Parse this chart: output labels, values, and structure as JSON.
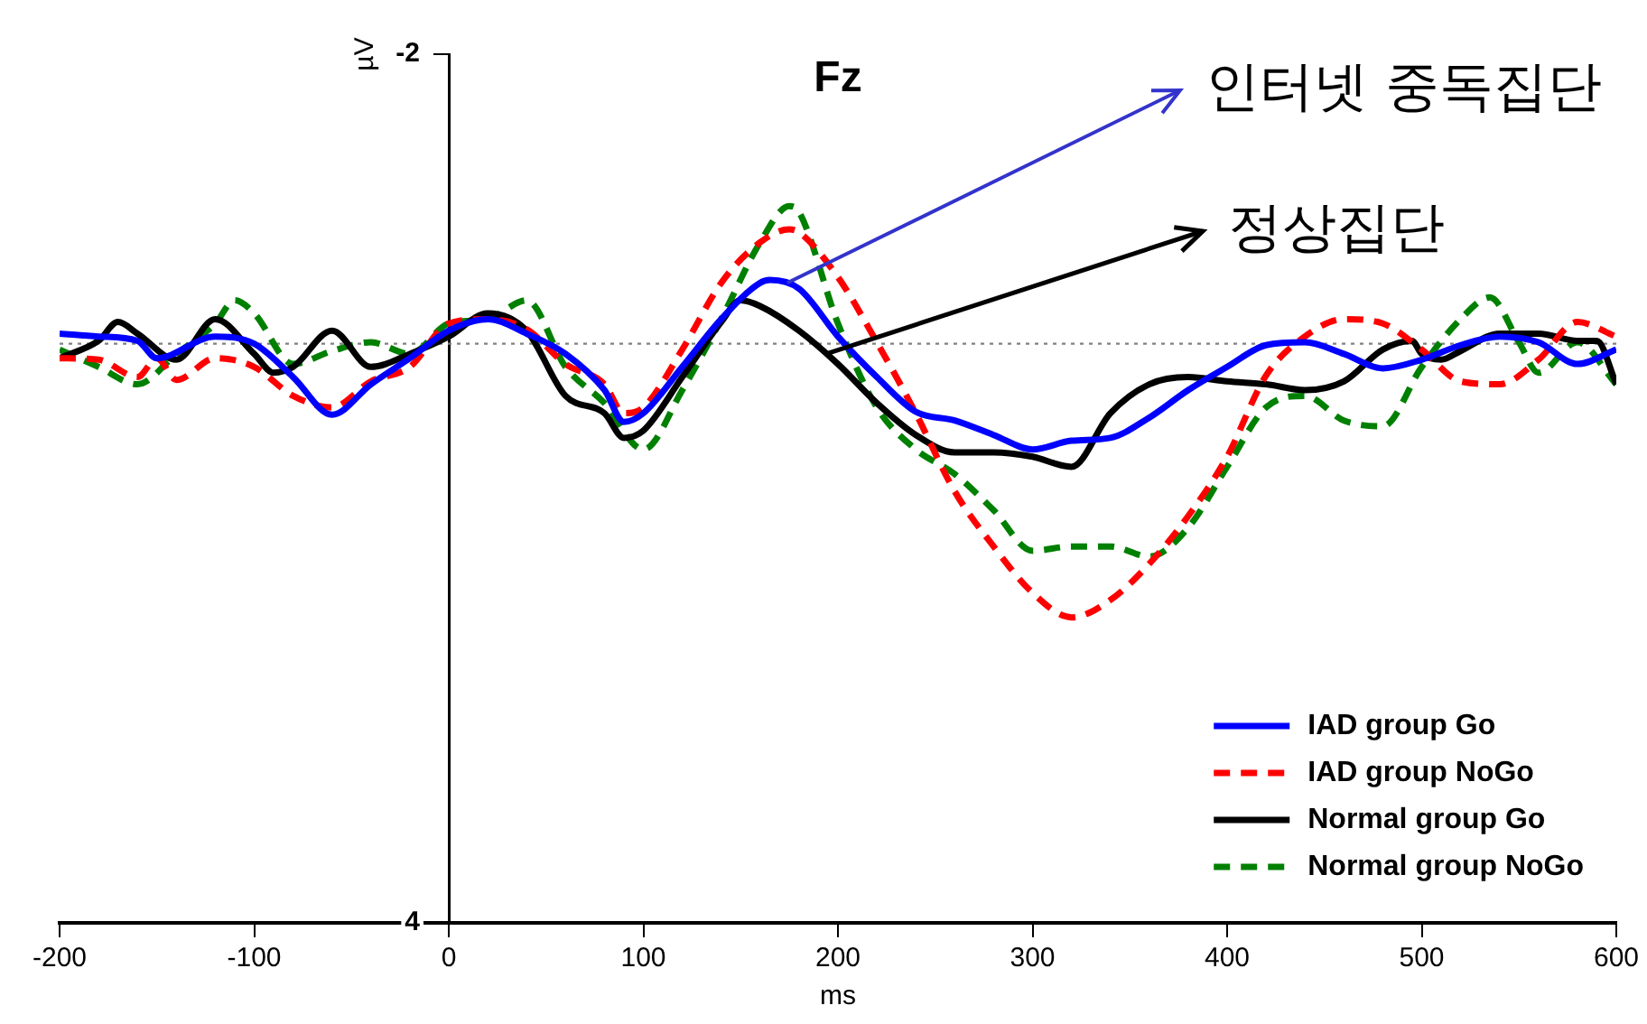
{
  "chart_data": {
    "type": "line",
    "title": "Fz",
    "xlabel": "ms",
    "ylabel": "µV",
    "xlim": [
      -200,
      600
    ],
    "xticks": [
      -200,
      -100,
      0,
      100,
      200,
      300,
      400,
      500,
      600
    ],
    "ylim": [
      4,
      -2
    ],
    "yticks": [
      -2,
      4
    ],
    "grid": false,
    "legend": "bottom right",
    "marker": "none",
    "ref_lines": [
      {
        "axis": "y",
        "value": 0,
        "color": "#808080",
        "line_style": "dotted"
      }
    ],
    "annotations": [
      {
        "text": "인터넷 중독집단",
        "x": 174,
        "y": -0.42
      },
      {
        "text": "정상집단",
        "x": 194,
        "y": 0.07
      }
    ],
    "series": [
      {
        "name": "IAD group Go",
        "color": "#0000ff",
        "line_style": "solid",
        "x": [
          -200,
          -180,
          -160,
          -150,
          -120,
          -100,
          -80,
          -60,
          -40,
          -20,
          0,
          20,
          40,
          60,
          80,
          90,
          100,
          120,
          140,
          160,
          165,
          180,
          200,
          220,
          240,
          260,
          280,
          300,
          320,
          340,
          360,
          380,
          400,
          420,
          440,
          460,
          480,
          500,
          520,
          540,
          560,
          580,
          600
        ],
        "values": [
          -0.07,
          -0.05,
          -0.02,
          0.1,
          -0.05,
          0,
          0.23,
          0.49,
          0.28,
          0.1,
          -0.09,
          -0.17,
          -0.07,
          0.07,
          0.32,
          0.54,
          0.48,
          0.16,
          -0.17,
          -0.42,
          -0.44,
          -0.38,
          -0.05,
          0.23,
          0.47,
          0.53,
          0.63,
          0.73,
          0.67,
          0.65,
          0.51,
          0.32,
          0.16,
          0.01,
          -0.01,
          0.07,
          0.17,
          0.11,
          0.01,
          -0.05,
          -0.01,
          0.14,
          0.04
        ]
      },
      {
        "name": "IAD group NoGo",
        "color": "#ff0000",
        "line_style": "dashed",
        "x": [
          -200,
          -180,
          -160,
          -150,
          -140,
          -120,
          -100,
          -80,
          -60,
          -40,
          -20,
          0,
          20,
          40,
          60,
          80,
          90,
          100,
          120,
          140,
          160,
          175,
          180,
          200,
          220,
          240,
          260,
          280,
          300,
          320,
          340,
          360,
          380,
          400,
          420,
          440,
          460,
          480,
          500,
          520,
          540,
          560,
          580,
          600
        ],
        "values": [
          0.1,
          0.11,
          0.23,
          0.1,
          0.25,
          0.1,
          0.16,
          0.36,
          0.44,
          0.26,
          0.16,
          -0.14,
          -0.17,
          -0.1,
          0.14,
          0.28,
          0.48,
          0.44,
          0.04,
          -0.42,
          -0.7,
          -0.79,
          -0.77,
          -0.46,
          -0.01,
          0.48,
          1.02,
          1.4,
          1.72,
          1.89,
          1.77,
          1.52,
          1.19,
          0.78,
          0.22,
          -0.05,
          -0.17,
          -0.14,
          0.04,
          0.26,
          0.28,
          0.11,
          -0.15,
          -0.05
        ]
      },
      {
        "name": "Normal group Go",
        "color": "#000000",
        "line_style": "solid",
        "x": [
          -200,
          -180,
          -170,
          -160,
          -140,
          -120,
          -100,
          -90,
          -80,
          -60,
          -40,
          -20,
          0,
          20,
          40,
          60,
          80,
          90,
          100,
          120,
          140,
          150,
          160,
          180,
          200,
          220,
          240,
          260,
          280,
          300,
          320,
          340,
          360,
          380,
          400,
          420,
          440,
          460,
          480,
          495,
          500,
          510,
          520,
          540,
          560,
          580,
          590,
          600
        ],
        "values": [
          0.1,
          -0.02,
          -0.15,
          -0.07,
          0.11,
          -0.17,
          0.07,
          0.2,
          0.16,
          -0.09,
          0.16,
          0.07,
          -0.05,
          -0.21,
          -0.09,
          0.36,
          0.48,
          0.65,
          0.6,
          0.23,
          -0.15,
          -0.3,
          -0.26,
          -0.09,
          0.14,
          0.41,
          0.63,
          0.75,
          0.75,
          0.78,
          0.85,
          0.48,
          0.28,
          0.23,
          0.26,
          0.28,
          0.32,
          0.26,
          0.04,
          -0.02,
          0.07,
          0.11,
          0.05,
          -0.07,
          -0.07,
          -0.02,
          -0.02,
          0.28
        ]
      },
      {
        "name": "Normal group NoGo",
        "color": "#008000",
        "line_style": "dashed",
        "x": [
          -200,
          -180,
          -160,
          -140,
          -120,
          -110,
          -100,
          -80,
          -60,
          -40,
          -20,
          0,
          20,
          40,
          60,
          80,
          100,
          120,
          140,
          160,
          175,
          180,
          200,
          220,
          240,
          260,
          280,
          300,
          320,
          340,
          360,
          380,
          400,
          420,
          440,
          460,
          480,
          500,
          520,
          535,
          550,
          560,
          580,
          600
        ],
        "values": [
          0.04,
          0.16,
          0.28,
          0.07,
          -0.14,
          -0.3,
          -0.21,
          0.14,
          0.05,
          -0.01,
          0.07,
          -0.14,
          -0.17,
          -0.3,
          0.16,
          0.41,
          0.73,
          0.32,
          -0.17,
          -0.7,
          -0.95,
          -0.91,
          -0.14,
          0.44,
          0.73,
          0.9,
          1.15,
          1.43,
          1.4,
          1.4,
          1.47,
          1.27,
          0.85,
          0.44,
          0.36,
          0.53,
          0.57,
          0.16,
          -0.17,
          -0.32,
          -0.01,
          0.2,
          -0.01,
          0.28
        ]
      }
    ]
  }
}
